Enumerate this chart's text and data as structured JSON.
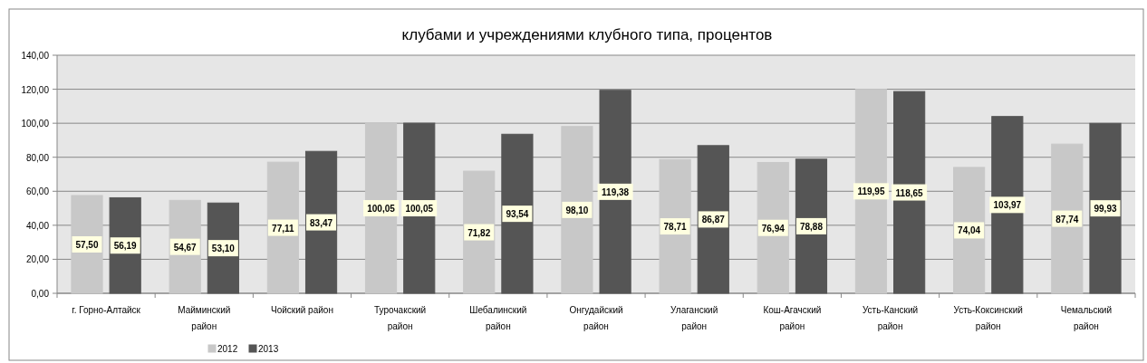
{
  "chart_data": {
    "type": "bar",
    "title": "клубами и учреждениями клубного типа, процентов",
    "categories": [
      "г. Горно-Алтайск",
      "Майминский район",
      "Чойский район",
      "Турочакский район",
      "Шебалинский район",
      "Онгудайский район",
      "Улаганский район",
      "Кош-Агачский район",
      "Усть-Канский район",
      "Усть-Коксинский район",
      "Чемальский район"
    ],
    "series": [
      {
        "name": "2012",
        "color": "#c8c8c8",
        "values": [
          57.5,
          54.67,
          77.11,
          100.05,
          71.82,
          98.1,
          78.71,
          76.94,
          119.95,
          74.04,
          87.74
        ],
        "value_labels": [
          "57,50",
          "54,67",
          "77,11",
          "100,05",
          "71,82",
          "98,10",
          "78,71",
          "76,94",
          "119,95",
          "74,04",
          "87,74"
        ]
      },
      {
        "name": "2013",
        "color": "#555555",
        "values": [
          56.19,
          53.1,
          83.47,
          100.05,
          93.54,
          119.38,
          86.87,
          78.88,
          118.65,
          103.97,
          99.93
        ],
        "value_labels": [
          "56,19",
          "53,10",
          "83,47",
          "100,05",
          "93,54",
          "119,38",
          "86,87",
          "78,88",
          "118,65",
          "103,97",
          "99,93"
        ]
      }
    ],
    "ylim": [
      0,
      140
    ],
    "yticks": [
      {
        "value": 0,
        "label": "0,00"
      },
      {
        "value": 20,
        "label": "20,00"
      },
      {
        "value": 40,
        "label": "40,00"
      },
      {
        "value": 60,
        "label": "60,00"
      },
      {
        "value": 80,
        "label": "80,00"
      },
      {
        "value": 100,
        "label": "100,00"
      },
      {
        "value": 120,
        "label": "120,00"
      },
      {
        "value": 140,
        "label": "140,00"
      }
    ],
    "grid": "y",
    "legend": "bottom left"
  }
}
